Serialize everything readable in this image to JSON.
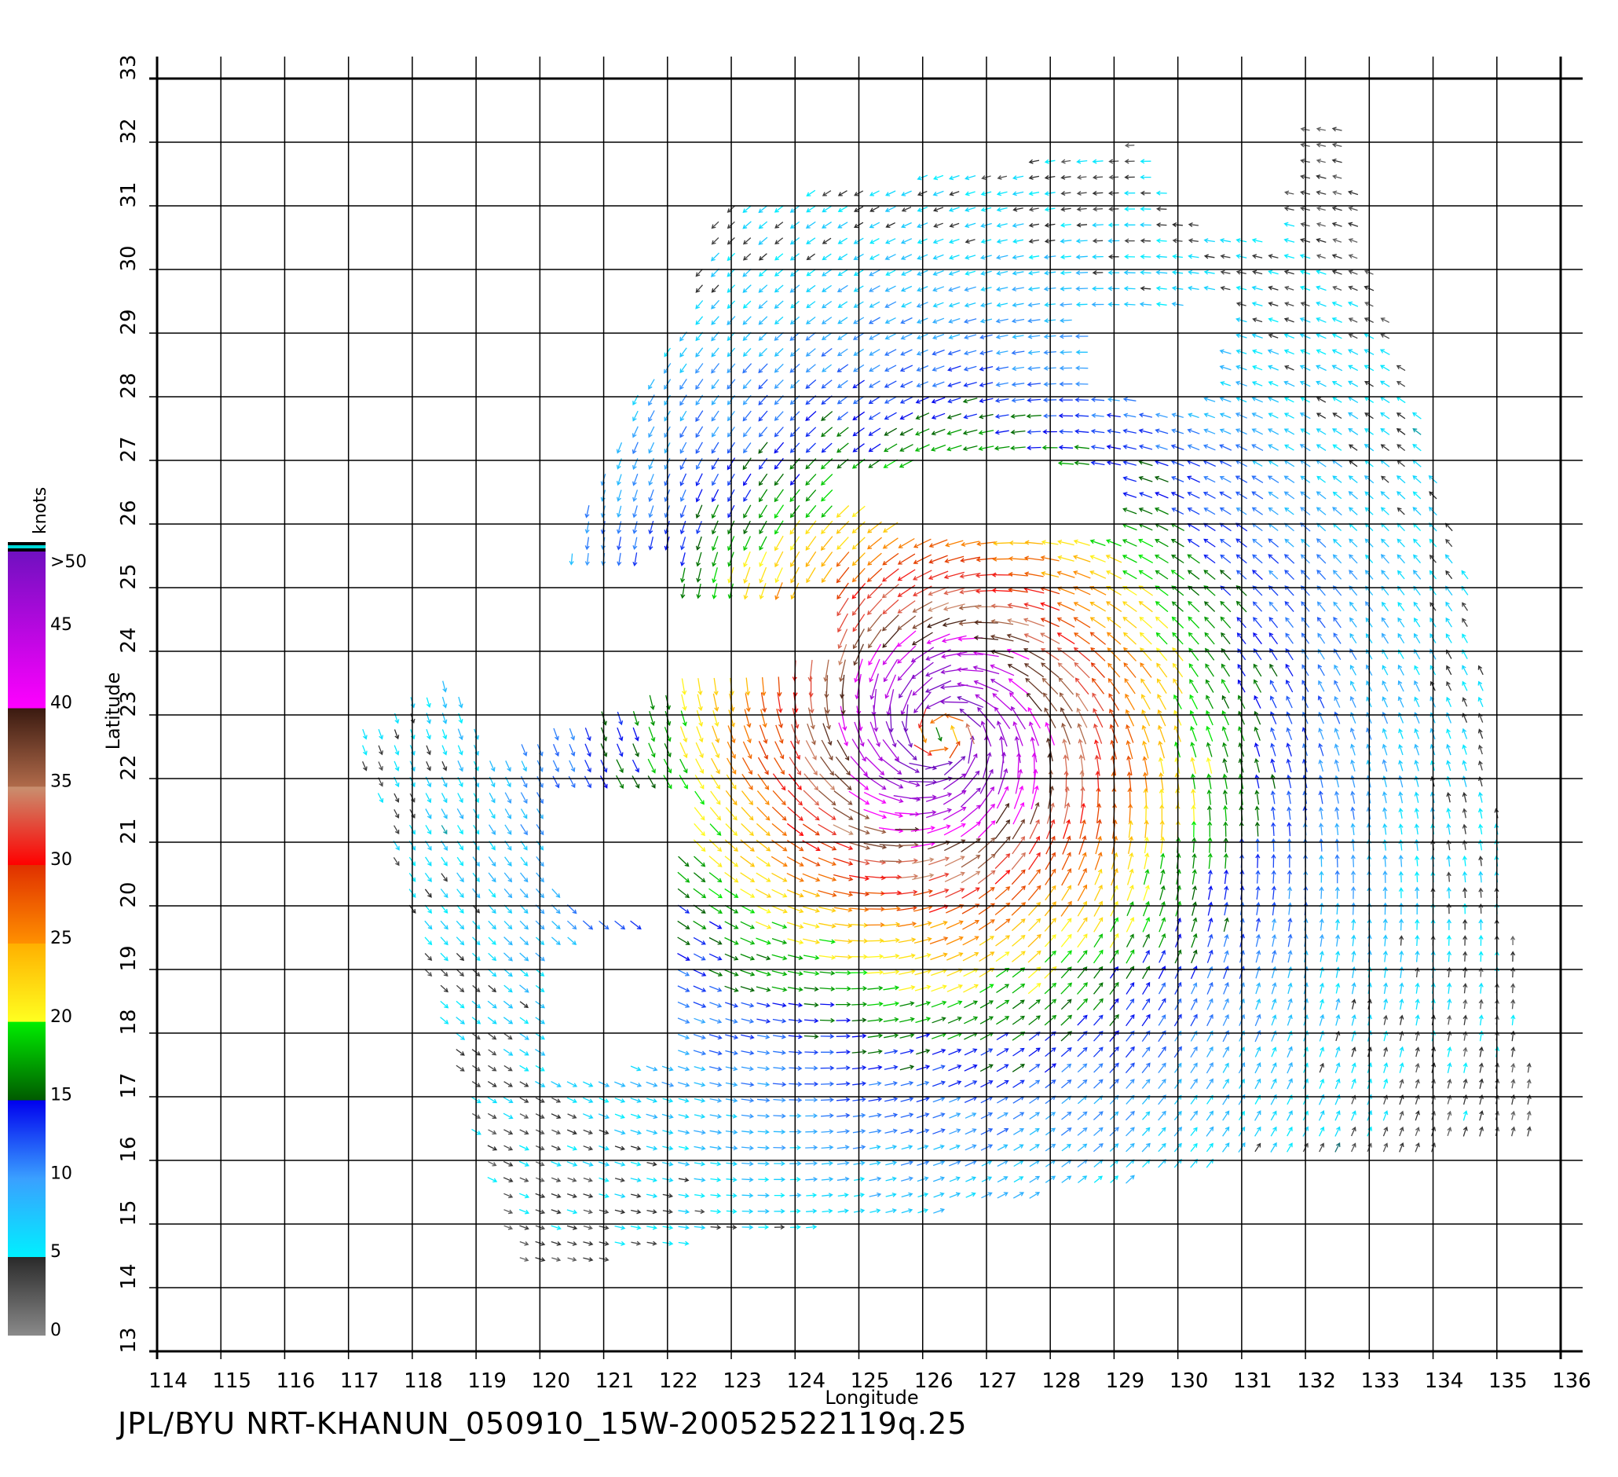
{
  "footer_text": "JPL/BYU  NRT-KHANUN_050910_15W-20052522119q.25",
  "chart_data": {
    "type": "vector-field",
    "xlabel": "Longitude",
    "ylabel": "Latitude",
    "xlim": [
      114,
      136
    ],
    "ylim": [
      13,
      33
    ],
    "x_ticks": [
      "114",
      "115",
      "116",
      "117",
      "118",
      "119",
      "120",
      "121",
      "122",
      "123",
      "124",
      "125",
      "126",
      "127",
      "128",
      "129",
      "130",
      "131",
      "132",
      "133",
      "134",
      "135",
      "136"
    ],
    "y_ticks": [
      "13",
      "14",
      "15",
      "16",
      "17",
      "18",
      "19",
      "20",
      "21",
      "22",
      "23",
      "24",
      "25",
      "26",
      "27",
      "28",
      "29",
      "30",
      "31",
      "32",
      "33"
    ],
    "grid": true,
    "colorbar": {
      "title": "knots",
      "labels": [
        "0",
        "5",
        "10",
        "15",
        "20",
        "25",
        "30",
        "35",
        "40",
        "45",
        ">50"
      ],
      "stops": [
        {
          "v": 0,
          "color": "#8a8a8a"
        },
        {
          "v": 5,
          "color": "#2a2a2a"
        },
        {
          "v": 5.01,
          "color": "#00f0ff"
        },
        {
          "v": 10,
          "color": "#3aa0ff"
        },
        {
          "v": 15,
          "color": "#0000ee"
        },
        {
          "v": 15.01,
          "color": "#005a00"
        },
        {
          "v": 20,
          "color": "#00ee00"
        },
        {
          "v": 20.01,
          "color": "#ffff20"
        },
        {
          "v": 25,
          "color": "#ffb000"
        },
        {
          "v": 25.01,
          "color": "#ff9000"
        },
        {
          "v": 30,
          "color": "#e03000"
        },
        {
          "v": 30.01,
          "color": "#ff0000"
        },
        {
          "v": 35,
          "color": "#c89070"
        },
        {
          "v": 35.01,
          "color": "#b06a4a"
        },
        {
          "v": 40,
          "color": "#3a1a10"
        },
        {
          "v": 40.01,
          "color": "#ff00ff"
        },
        {
          "v": 50,
          "color": "#7010c0"
        }
      ]
    },
    "storm": {
      "center_lon": 126.3,
      "center_lat": 22.7,
      "max_wind_knots": 50
    },
    "swath_polygon_lonlat": [
      [
        122.8,
        31.0
      ],
      [
        128.4,
        31.8
      ],
      [
        129.4,
        32.0
      ],
      [
        130.0,
        30.8
      ],
      [
        133.0,
        30.0
      ],
      [
        133.8,
        27.6
      ],
      [
        134.6,
        25.0
      ],
      [
        135.5,
        17.5
      ],
      [
        135.6,
        16.3
      ],
      [
        131.0,
        16.0
      ],
      [
        126.5,
        15.2
      ],
      [
        123.0,
        14.8
      ],
      [
        120.5,
        14.3
      ],
      [
        119.7,
        14.2
      ],
      [
        118.5,
        18.0
      ],
      [
        117.5,
        21.5
      ],
      [
        117.0,
        22.6
      ],
      [
        120.0,
        24.5
      ],
      [
        121.5,
        28.0
      ],
      [
        122.2,
        29.0
      ]
    ],
    "swath_polygon_lonlat_2": [
      [
        132.0,
        32.3
      ],
      [
        132.6,
        32.3
      ],
      [
        133.0,
        30.0
      ],
      [
        131.5,
        30.2
      ]
    ],
    "data_gaps_lonlat": [
      [
        [
          127.0,
          27.2
        ],
        [
          129.0,
          26.8
        ],
        [
          129.2,
          25.9
        ],
        [
          125.8,
          25.9
        ],
        [
          124.2,
          26.6
        ]
      ],
      [
        [
          128.5,
          29.2
        ],
        [
          131.0,
          29.6
        ],
        [
          130.4,
          27.8
        ],
        [
          128.6,
          28.1
        ]
      ],
      [
        [
          118.0,
          24.8
        ],
        [
          122.0,
          25.5
        ],
        [
          122.3,
          23.5
        ],
        [
          119.2,
          22.3
        ]
      ],
      [
        [
          120.4,
          24.5
        ],
        [
          124.6,
          25.0
        ],
        [
          124.7,
          23.8
        ],
        [
          121.0,
          23.4
        ]
      ],
      [
        [
          120.1,
          21.8
        ],
        [
          122.3,
          21.9
        ],
        [
          122.2,
          19.6
        ],
        [
          120.3,
          20.0
        ]
      ],
      [
        [
          120.0,
          19.4
        ],
        [
          122.2,
          19.6
        ],
        [
          122.0,
          17.6
        ],
        [
          120.2,
          17.2
        ]
      ]
    ]
  }
}
